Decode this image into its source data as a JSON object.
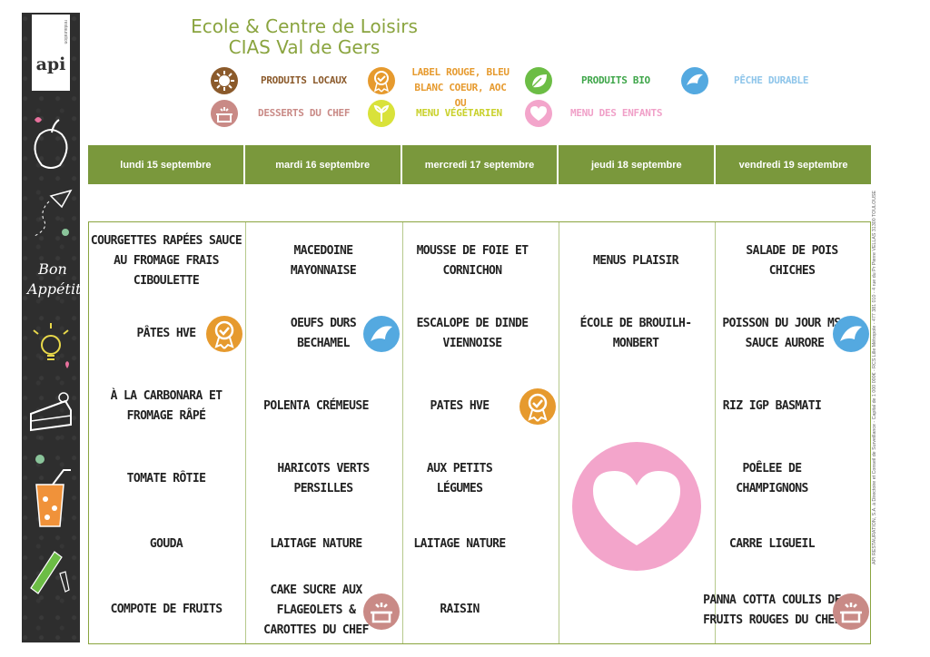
{
  "header": {
    "title_line1": "Ecole & Centre de Loisirs",
    "title_line2": "CIAS Val de Gers",
    "logo_text": "api",
    "logo_sub": "restauration",
    "sidebar_text_1": "Bon",
    "sidebar_text_2": "Appétit"
  },
  "legend": {
    "local": "PRODUITS LOCAUX",
    "label_rouge_1": "LABEL ROUGE, BLEU",
    "label_rouge_2": "BLANC COEUR, AOC OU",
    "bio": "PRODUITS BIO",
    "peche": "PÊCHE DURABLE",
    "desserts": "DESSERTS DU CHEF",
    "vege": "MENU VÉGÉTARIEN",
    "enfants": "MENU DES ENFANTS"
  },
  "days": [
    "lundi 15 septembre",
    "mardi 16 septembre",
    "mercredi 17 septembre",
    "jeudi 18 septembre",
    "vendredi 19 septembre"
  ],
  "menu": {
    "mon": [
      "COURGETTES RAPÉES SAUCE AU FROMAGE FRAIS CIBOULETTE",
      "PÂTES HVE",
      "À LA CARBONARA ET FROMAGE RÂPÉ",
      "TOMATE RÔTIE",
      "GOUDA",
      "COMPOTE DE FRUITS"
    ],
    "tue": [
      "MACEDOINE MAYONNAISE",
      "OEUFS DURS BECHAMEL",
      "POLENTA CRÉMEUSE",
      "HARICOTS VERTS PERSILLES",
      "LAITAGE NATURE",
      "CAKE SUCRE AUX FLAGEOLETS & CAROTTES DU CHEF"
    ],
    "wed": [
      "MOUSSE DE FOIE ET CORNICHON",
      "ESCALOPE DE DINDE VIENNOISE",
      "PATES HVE",
      "AUX PETITS LÉGUMES",
      "LAITAGE NATURE",
      "RAISIN"
    ],
    "thu": [
      "MENUS PLAISIR",
      "ÉCOLE DE BROUILH-MONBERT"
    ],
    "fri": [
      "SALADE DE POIS CHICHES",
      "POISSON DU JOUR MSC SAUCE AURORE",
      "RIZ IGP BASMATI",
      "POÊLEE DE CHAMPIGNONS",
      "CARRE LIGUEIL",
      "PANNA COTTA COULIS DE FRUITS ROUGES DU CHEF"
    ]
  },
  "legal": "API RESTAURATION, S.A. à Directoire et Conseil de Surveillance - Capital de 1 000 000€ - RCS Lille Métropole - 477 381 010 - 4 rue du Pr Pierre VELLAS 31300 TOULOUSE",
  "colors": {
    "green_bar": "#7a983c",
    "title_green": "#8aa43f",
    "orange": "#e69a2e",
    "blue": "#54a9e0",
    "rose_brown": "#c98a86",
    "pink": "#f3a5cb",
    "lime": "#d9e23a",
    "bio_green": "#6cbd45"
  }
}
